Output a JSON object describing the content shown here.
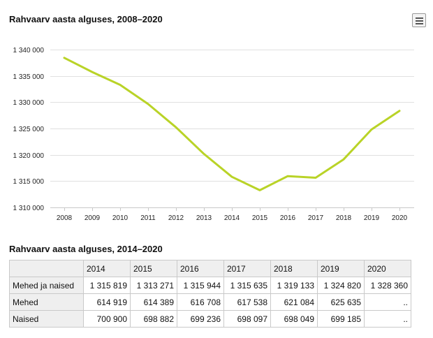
{
  "chart_data": {
    "type": "line",
    "title": "Rahvaarv aasta alguses, 2008–2020",
    "x": [
      "2008",
      "2009",
      "2010",
      "2011",
      "2012",
      "2013",
      "2014",
      "2015",
      "2016",
      "2017",
      "2018",
      "2019",
      "2020"
    ],
    "series": [
      {
        "values": [
          1338440,
          1335740,
          1333290,
          1329660,
          1325220,
          1320170,
          1315819,
          1313271,
          1315944,
          1315635,
          1319133,
          1324820,
          1328360
        ]
      }
    ],
    "ylim": [
      1310000,
      1340000
    ],
    "yticks": [
      1310000,
      1315000,
      1320000,
      1325000,
      1330000,
      1335000,
      1340000
    ],
    "ytick_labels": [
      "1 310 000",
      "1 315 000",
      "1 320 000",
      "1 325 000",
      "1 330 000",
      "1 335 000",
      "1 340 000"
    ],
    "line_color": "#b9d327",
    "grid": true,
    "legend": "none"
  },
  "table": {
    "title": "Rahvaarv aasta alguses, 2014–2020",
    "columns": [
      "2014",
      "2015",
      "2016",
      "2017",
      "2018",
      "2019",
      "2020"
    ],
    "rows": [
      {
        "label": "Mehed ja naised",
        "cells": [
          "1 315 819",
          "1 313 271",
          "1 315 944",
          "1 315 635",
          "1 319 133",
          "1 324 820",
          "1 328 360"
        ]
      },
      {
        "label": "Mehed",
        "cells": [
          "614 919",
          "614 389",
          "616 708",
          "617 538",
          "621 084",
          "625 635",
          ".."
        ]
      },
      {
        "label": "Naised",
        "cells": [
          "700 900",
          "698 882",
          "699 236",
          "698 097",
          "698 049",
          "699 185",
          ".."
        ]
      }
    ]
  },
  "menu": {
    "icon": "hamburger-menu-icon"
  }
}
